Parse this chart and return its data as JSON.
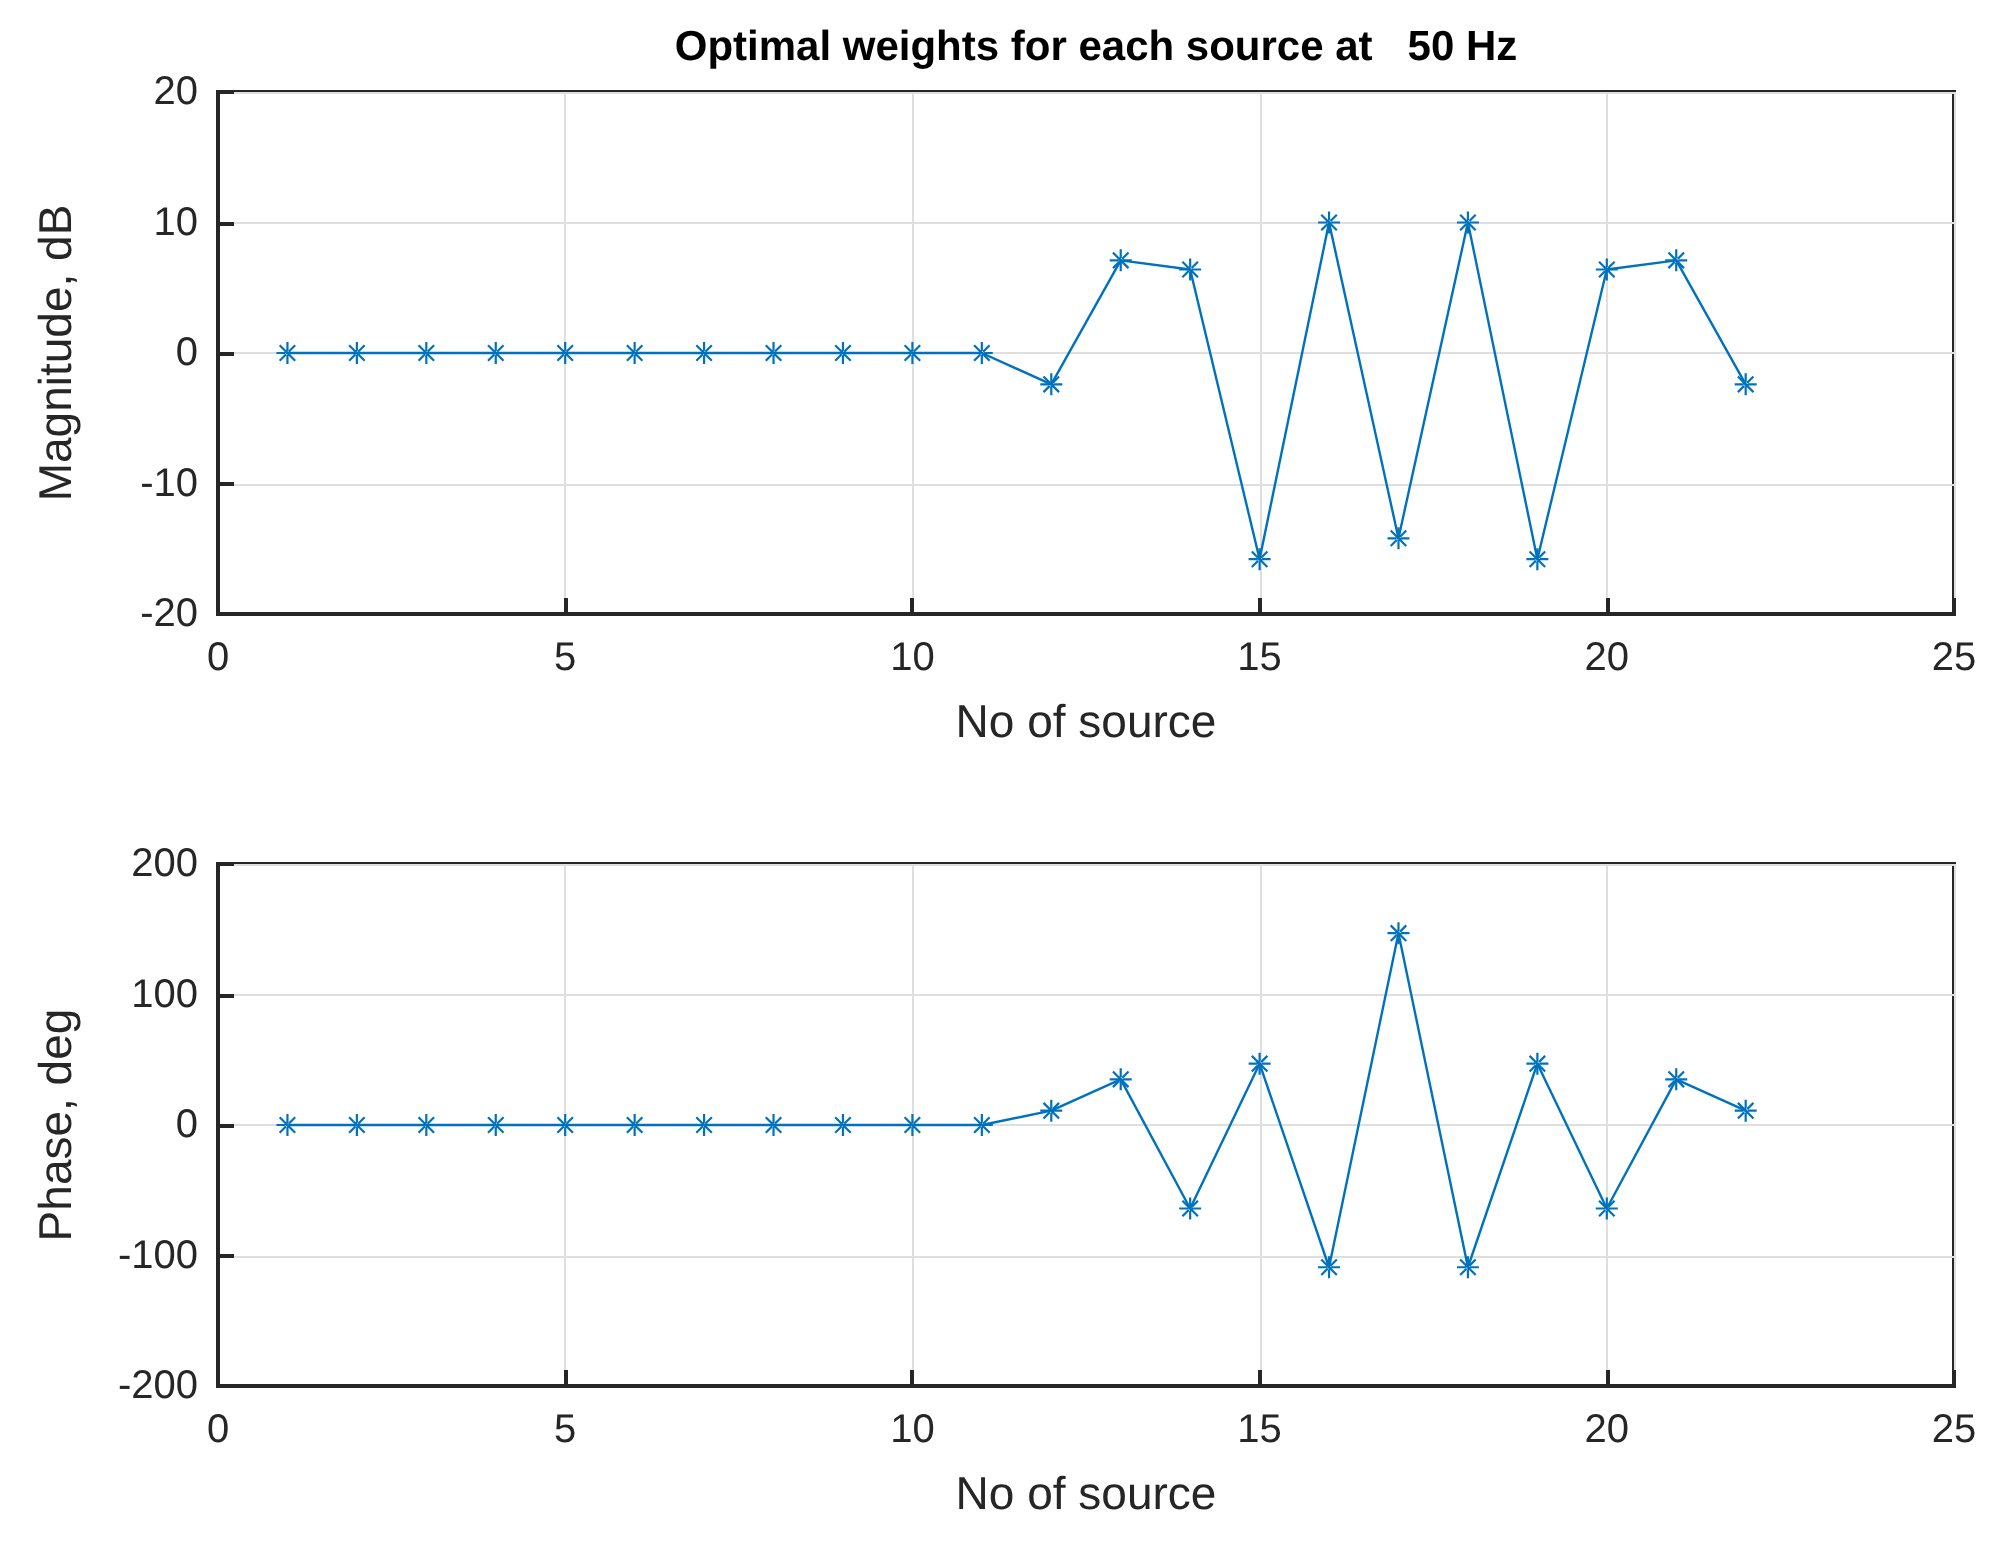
{
  "chart_data": [
    {
      "type": "line",
      "title": "Optimal weights for each source at   50 Hz",
      "xlabel": "No of source",
      "ylabel": "Magnitude, dB",
      "x": [
        1,
        2,
        3,
        4,
        5,
        6,
        7,
        8,
        9,
        10,
        11,
        12,
        13,
        14,
        15,
        16,
        17,
        18,
        19,
        20,
        21,
        22
      ],
      "series": [
        {
          "color": "#0072bd",
          "values": [
            0,
            0,
            0,
            0,
            0,
            0,
            0,
            0,
            0,
            0,
            0,
            -2.4,
            7.1,
            6.4,
            -15.8,
            10,
            -14.2,
            10,
            -15.8,
            6.4,
            7.1,
            -2.4
          ]
        }
      ],
      "xlim": [
        0,
        25
      ],
      "xticks": [
        0,
        5,
        10,
        15,
        20,
        25
      ],
      "ylim": [
        -20,
        20
      ],
      "yticks": [
        -20,
        -10,
        0,
        10,
        20
      ],
      "grid": true,
      "marker": "cross",
      "line_style": "solid"
    },
    {
      "type": "line",
      "xlabel": "No of source",
      "ylabel": "Phase, deg",
      "x": [
        1,
        2,
        3,
        4,
        5,
        6,
        7,
        8,
        9,
        10,
        11,
        12,
        13,
        14,
        15,
        16,
        17,
        18,
        19,
        20,
        21,
        22
      ],
      "series": [
        {
          "color": "#0072bd",
          "values": [
            0,
            0,
            0,
            0,
            0,
            0,
            0,
            0,
            0,
            0,
            0,
            11,
            35,
            -64,
            47,
            -109,
            147,
            -109,
            47,
            -64,
            35,
            11
          ]
        }
      ],
      "xlim": [
        0,
        25
      ],
      "xticks": [
        0,
        5,
        10,
        15,
        20,
        25
      ],
      "ylim": [
        -200,
        200
      ],
      "yticks": [
        -200,
        -100,
        0,
        100,
        200
      ],
      "grid": true,
      "marker": "cross",
      "line_style": "solid"
    }
  ]
}
